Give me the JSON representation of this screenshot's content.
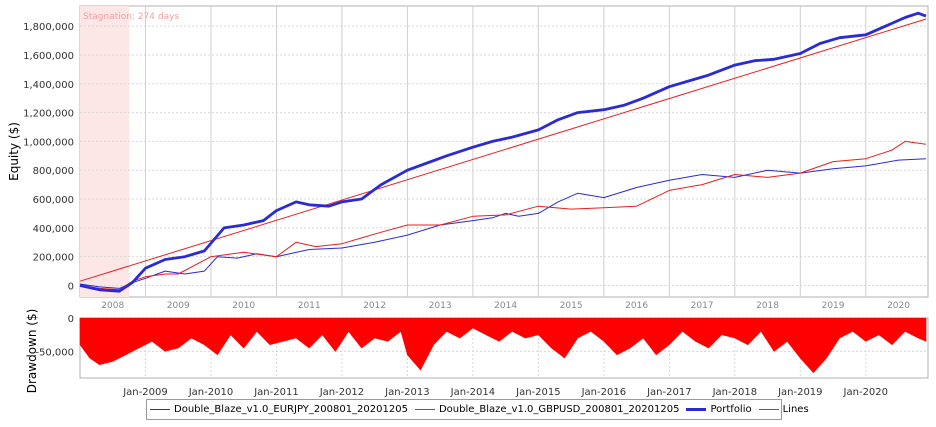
{
  "chart_data": [
    {
      "type": "line",
      "ylabel": "Equity ($)",
      "annotation": "Stagnation: 274 days",
      "stagnation_period": [
        "2008-01-01",
        "2008-10-01"
      ],
      "ylim": [
        -80000,
        1940000
      ],
      "y_ticks": [
        0,
        200000,
        400000,
        600000,
        800000,
        1000000,
        1200000,
        1400000,
        1600000,
        1800000
      ],
      "y_tick_labels": [
        "0",
        "200,000",
        "400,000",
        "600,000",
        "800,000",
        "1,000,000",
        "1,200,000",
        "1,400,000",
        "1,600,000",
        "1,800,000"
      ],
      "year_labels": [
        "2008",
        "2009",
        "2010",
        "2011",
        "2012",
        "2013",
        "2014",
        "2015",
        "2016",
        "2017",
        "2018",
        "2019",
        "2020"
      ],
      "grid": true,
      "series": [
        {
          "name": "Double_Blaze_v1.0_EURJPY_200801_20201205",
          "color": "#2b2bd6",
          "x": [
            2008.0,
            2008.3,
            2008.6,
            2008.8,
            2009.0,
            2009.3,
            2009.6,
            2009.9,
            2010.1,
            2010.4,
            2010.7,
            2011.0,
            2011.5,
            2012.0,
            2012.5,
            2013.0,
            2013.5,
            2014.0,
            2014.3,
            2014.5,
            2014.7,
            2015.0,
            2015.3,
            2015.6,
            2016.0,
            2016.5,
            2017.0,
            2017.5,
            2018.0,
            2018.5,
            2019.0,
            2019.5,
            2020.0,
            2020.5,
            2020.92
          ],
          "y": [
            10000,
            -10000,
            -20000,
            20000,
            50000,
            100000,
            80000,
            100000,
            200000,
            190000,
            220000,
            200000,
            250000,
            260000,
            300000,
            350000,
            420000,
            450000,
            470000,
            500000,
            480000,
            500000,
            580000,
            640000,
            610000,
            680000,
            730000,
            770000,
            750000,
            800000,
            780000,
            810000,
            830000,
            870000,
            880000
          ]
        },
        {
          "name": "Double_Blaze_v1.0_GBPUSD_200801_20201205",
          "color": "#ee1c1c",
          "x": [
            2008.0,
            2008.3,
            2008.6,
            2008.8,
            2009.0,
            2009.3,
            2009.5,
            2010.0,
            2010.5,
            2011.0,
            2011.3,
            2011.6,
            2012.0,
            2012.3,
            2012.6,
            2013.0,
            2013.5,
            2014.0,
            2014.5,
            2015.0,
            2015.5,
            2016.0,
            2016.5,
            2017.0,
            2017.5,
            2018.0,
            2018.5,
            2019.0,
            2019.5,
            2020.0,
            2020.4,
            2020.6,
            2020.92
          ],
          "y": [
            0,
            -20000,
            -30000,
            30000,
            60000,
            80000,
            80000,
            200000,
            230000,
            200000,
            300000,
            270000,
            290000,
            330000,
            370000,
            420000,
            420000,
            480000,
            490000,
            550000,
            530000,
            540000,
            550000,
            660000,
            700000,
            770000,
            750000,
            780000,
            860000,
            880000,
            940000,
            1000000,
            980000
          ]
        },
        {
          "name": "Portfolio",
          "color": "#2b2bd6",
          "x": [
            2008.0,
            2008.3,
            2008.6,
            2008.8,
            2009.0,
            2009.3,
            2009.6,
            2009.9,
            2010.2,
            2010.5,
            2010.8,
            2011.0,
            2011.3,
            2011.5,
            2011.8,
            2012.0,
            2012.3,
            2012.6,
            2013.0,
            2013.3,
            2013.6,
            2014.0,
            2014.3,
            2014.6,
            2015.0,
            2015.3,
            2015.6,
            2016.0,
            2016.3,
            2016.6,
            2017.0,
            2017.3,
            2017.6,
            2018.0,
            2018.3,
            2018.6,
            2019.0,
            2019.3,
            2019.6,
            2020.0,
            2020.3,
            2020.6,
            2020.8,
            2020.92
          ],
          "y": [
            0,
            -30000,
            -40000,
            20000,
            120000,
            180000,
            200000,
            240000,
            400000,
            420000,
            450000,
            520000,
            580000,
            560000,
            550000,
            580000,
            600000,
            700000,
            800000,
            850000,
            900000,
            960000,
            1000000,
            1030000,
            1080000,
            1150000,
            1200000,
            1220000,
            1250000,
            1300000,
            1380000,
            1420000,
            1460000,
            1530000,
            1560000,
            1570000,
            1610000,
            1680000,
            1720000,
            1740000,
            1800000,
            1860000,
            1890000,
            1870000
          ]
        },
        {
          "name": "Lines",
          "color": "#ee1c1c",
          "x": [
            2008.0,
            2020.92
          ],
          "y": [
            30000,
            1850000
          ]
        }
      ]
    },
    {
      "type": "area",
      "ylabel": "Drawdown ($)",
      "ylim": [
        -90000,
        0
      ],
      "y_ticks": [
        0,
        -50000
      ],
      "y_tick_labels": [
        "0",
        "-50,000"
      ],
      "x_ticks": [
        "Jan-2009",
        "Jan-2010",
        "Jan-2011",
        "Jan-2012",
        "Jan-2013",
        "Jan-2014",
        "Jan-2015",
        "Jan-2016",
        "Jan-2017",
        "Jan-2018",
        "Jan-2019",
        "Jan-2020"
      ],
      "color": "#ff0000",
      "x": [
        2008.0,
        2008.15,
        2008.3,
        2008.5,
        2008.7,
        2008.9,
        2009.1,
        2009.3,
        2009.5,
        2009.7,
        2009.9,
        2010.1,
        2010.3,
        2010.5,
        2010.7,
        2010.9,
        2011.1,
        2011.3,
        2011.5,
        2011.7,
        2011.9,
        2012.1,
        2012.3,
        2012.5,
        2012.7,
        2012.9,
        2013.0,
        2013.2,
        2013.4,
        2013.6,
        2013.8,
        2014.0,
        2014.2,
        2014.4,
        2014.6,
        2014.8,
        2015.0,
        2015.2,
        2015.4,
        2015.6,
        2015.8,
        2016.0,
        2016.2,
        2016.4,
        2016.6,
        2016.8,
        2017.0,
        2017.2,
        2017.4,
        2017.6,
        2017.8,
        2018.0,
        2018.2,
        2018.4,
        2018.6,
        2018.8,
        2019.0,
        2019.2,
        2019.4,
        2019.6,
        2019.8,
        2020.0,
        2020.2,
        2020.4,
        2020.6,
        2020.8,
        2020.92
      ],
      "y": [
        -40000,
        -60000,
        -70000,
        -65000,
        -55000,
        -45000,
        -35000,
        -50000,
        -45000,
        -30000,
        -40000,
        -55000,
        -25000,
        -45000,
        -20000,
        -40000,
        -35000,
        -30000,
        -45000,
        -25000,
        -50000,
        -20000,
        -45000,
        -30000,
        -35000,
        -20000,
        -55000,
        -78000,
        -40000,
        -20000,
        -30000,
        -15000,
        -25000,
        -35000,
        -20000,
        -30000,
        -25000,
        -45000,
        -60000,
        -30000,
        -20000,
        -35000,
        -55000,
        -45000,
        -30000,
        -55000,
        -40000,
        -20000,
        -35000,
        -45000,
        -25000,
        -30000,
        -40000,
        -20000,
        -50000,
        -35000,
        -60000,
        -82000,
        -60000,
        -30000,
        -20000,
        -35000,
        -25000,
        -40000,
        -20000,
        -30000,
        -35000
      ]
    }
  ],
  "legend": {
    "items": [
      {
        "label": "Double_Blaze_v1.0_EURJPY_200801_20201205",
        "color": "#2b2bd6",
        "width": 1
      },
      {
        "label": "Double_Blaze_v1.0_GBPUSD_200801_20201205",
        "color": "#ee1c1c",
        "width": 1
      },
      {
        "label": "Portfolio",
        "color": "#2b2bd6",
        "width": 3
      },
      {
        "label": "Lines",
        "color": "#ee1c1c",
        "width": 1
      }
    ]
  }
}
